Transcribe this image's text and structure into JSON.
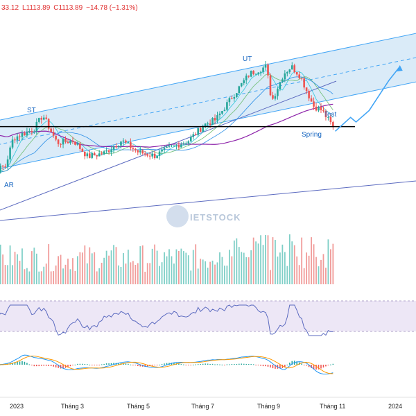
{
  "ohlc_header": {
    "open": "33.12",
    "low": "L1113.89",
    "close": "C1113.89",
    "change": "−14.78 (−1.31%)"
  },
  "watermark": "IETSTOCK",
  "annotations": {
    "ar": "AR",
    "st": "ST",
    "ut": "UT",
    "test": "Test",
    "spring": "Spring"
  },
  "x_axis_labels": [
    "2023",
    "Tháng 3",
    "Tháng 5",
    "Tháng 7",
    "Tháng 9",
    "Tháng 11",
    "2024"
  ],
  "colors": {
    "up": "#26a69a",
    "down": "#ef5350",
    "channel_fill": "#d3e7f7",
    "channel_line": "#42a5f5",
    "support_line": "#000000",
    "ma_long": "#8e24aa",
    "trendline": "#5c6bc0",
    "rsi_line": "#5c6bc0",
    "rsi_band": "#ede7f6",
    "macd_line": "#2196f3",
    "signal_line": "#ff9800",
    "annotation": "#1565c0"
  },
  "chart_data": {
    "type": "candlestick",
    "title": "",
    "last_close": 1113.89,
    "change": -14.78,
    "change_pct": -1.31,
    "x_start": "2023-01-01",
    "x_ticks": [
      "2023",
      "Tháng 3",
      "Tháng 5",
      "Tháng 7",
      "Tháng 9",
      "Tháng 11",
      "2024"
    ],
    "price_path": [
      {
        "date": "2022-12-05",
        "close": 1010
      },
      {
        "date": "2022-12-25",
        "close": 1030
      },
      {
        "date": "2023-01-01",
        "close": 1090
      },
      {
        "date": "2023-01-20",
        "close": 1110
      },
      {
        "date": "2023-01-28",
        "close": 1140
      },
      {
        "date": "2023-02-10",
        "close": 1080
      },
      {
        "date": "2023-02-25",
        "close": 1085
      },
      {
        "date": "2023-03-10",
        "close": 1050
      },
      {
        "date": "2023-03-25",
        "close": 1058
      },
      {
        "date": "2023-04-10",
        "close": 1085
      },
      {
        "date": "2023-04-25",
        "close": 1060
      },
      {
        "date": "2023-05-10",
        "close": 1052
      },
      {
        "date": "2023-05-25",
        "close": 1070
      },
      {
        "date": "2023-06-10",
        "close": 1085
      },
      {
        "date": "2023-06-25",
        "close": 1120
      },
      {
        "date": "2023-07-05",
        "close": 1130
      },
      {
        "date": "2023-07-20",
        "close": 1180
      },
      {
        "date": "2023-08-05",
        "close": 1230
      },
      {
        "date": "2023-08-20",
        "close": 1245
      },
      {
        "date": "2023-08-25",
        "close": 1170
      },
      {
        "date": "2023-09-05",
        "close": 1230
      },
      {
        "date": "2023-09-12",
        "close": 1245
      },
      {
        "date": "2023-09-20",
        "close": 1225
      },
      {
        "date": "2023-10-02",
        "close": 1160
      },
      {
        "date": "2023-10-10",
        "close": 1150
      },
      {
        "date": "2023-10-20",
        "close": 1113.89
      }
    ],
    "annotations": [
      {
        "label": "AR",
        "date": "2022-12-15",
        "price": 1005
      },
      {
        "label": "ST",
        "date": "2023-01-28",
        "price": 1145
      },
      {
        "label": "UT",
        "date": "2023-08-20",
        "price": 1248
      },
      {
        "label": "Spring",
        "date": "2023-10-20",
        "price": 1105
      },
      {
        "label": "Test",
        "date": "2023-11-12",
        "price": 1140
      }
    ],
    "support_level": 1115,
    "channel": {
      "start_date": "2022-12-01",
      "lower_start": 1015,
      "upper_start": 1120,
      "slope_per_month": 15
    },
    "projection": [
      {
        "date": "2023-10-22",
        "price": 1105
      },
      {
        "date": "2023-11-05",
        "price": 1135
      },
      {
        "date": "2023-11-10",
        "price": 1125
      },
      {
        "date": "2023-11-22",
        "price": 1150
      },
      {
        "date": "2023-12-10",
        "price": 1215
      },
      {
        "date": "2023-12-20",
        "price": 1245
      }
    ],
    "indicators": [
      "volume",
      "RSI",
      "MACD"
    ]
  }
}
